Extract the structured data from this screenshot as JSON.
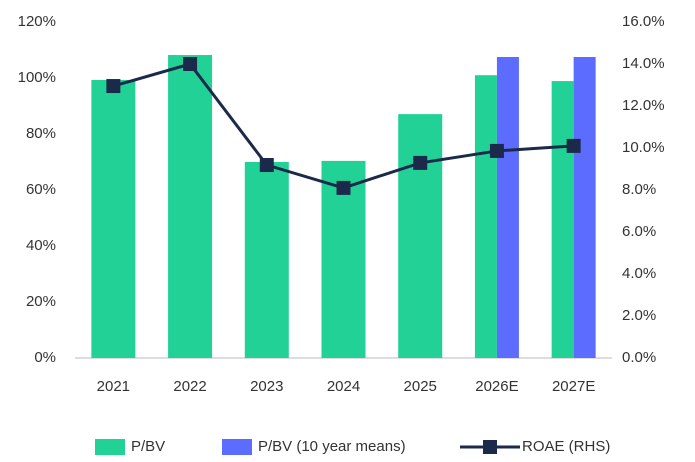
{
  "chart_data": {
    "type": "bar",
    "categories": [
      "2021",
      "2022",
      "2023",
      "2024",
      "2025",
      "2026E",
      "2027E"
    ],
    "series": [
      {
        "name": "P/BV",
        "type": "bar",
        "color": "#22d196",
        "values": [
          99.3,
          108.2,
          70,
          70.4,
          87.1,
          101,
          98.9
        ]
      },
      {
        "name": "P/BV (10 year means)",
        "type": "bar",
        "color": "#5b6cff",
        "values": [
          null,
          null,
          null,
          null,
          null,
          107.5,
          107.5
        ]
      },
      {
        "name": "ROAE (RHS)",
        "type": "line",
        "axis": "y2",
        "color": "#1b2a4a",
        "values": [
          12.95,
          14.0,
          9.19,
          8.1,
          9.29,
          9.86,
          10.1
        ]
      }
    ],
    "ylim": [
      0,
      120
    ],
    "yticks": [
      {
        "value": 0,
        "label": "0%"
      },
      {
        "value": 20,
        "label": "20%"
      },
      {
        "value": 40,
        "label": "40%"
      },
      {
        "value": 60,
        "label": "60%"
      },
      {
        "value": 80,
        "label": "80%"
      },
      {
        "value": 100,
        "label": "100%"
      },
      {
        "value": 120,
        "label": "120%"
      }
    ],
    "y2lim": [
      0,
      16
    ],
    "y2ticks": [
      {
        "value": 0,
        "label": "0.0%"
      },
      {
        "value": 2,
        "label": "2.0%"
      },
      {
        "value": 4,
        "label": "4.0%"
      },
      {
        "value": 6,
        "label": "6.0%"
      },
      {
        "value": 8,
        "label": "8.0%"
      },
      {
        "value": 10,
        "label": "10.0%"
      },
      {
        "value": 12,
        "label": "12.0%"
      },
      {
        "value": 14,
        "label": "14.0%"
      },
      {
        "value": 16,
        "label": "16.0%"
      }
    ],
    "legend": "bottom",
    "grid": false
  }
}
